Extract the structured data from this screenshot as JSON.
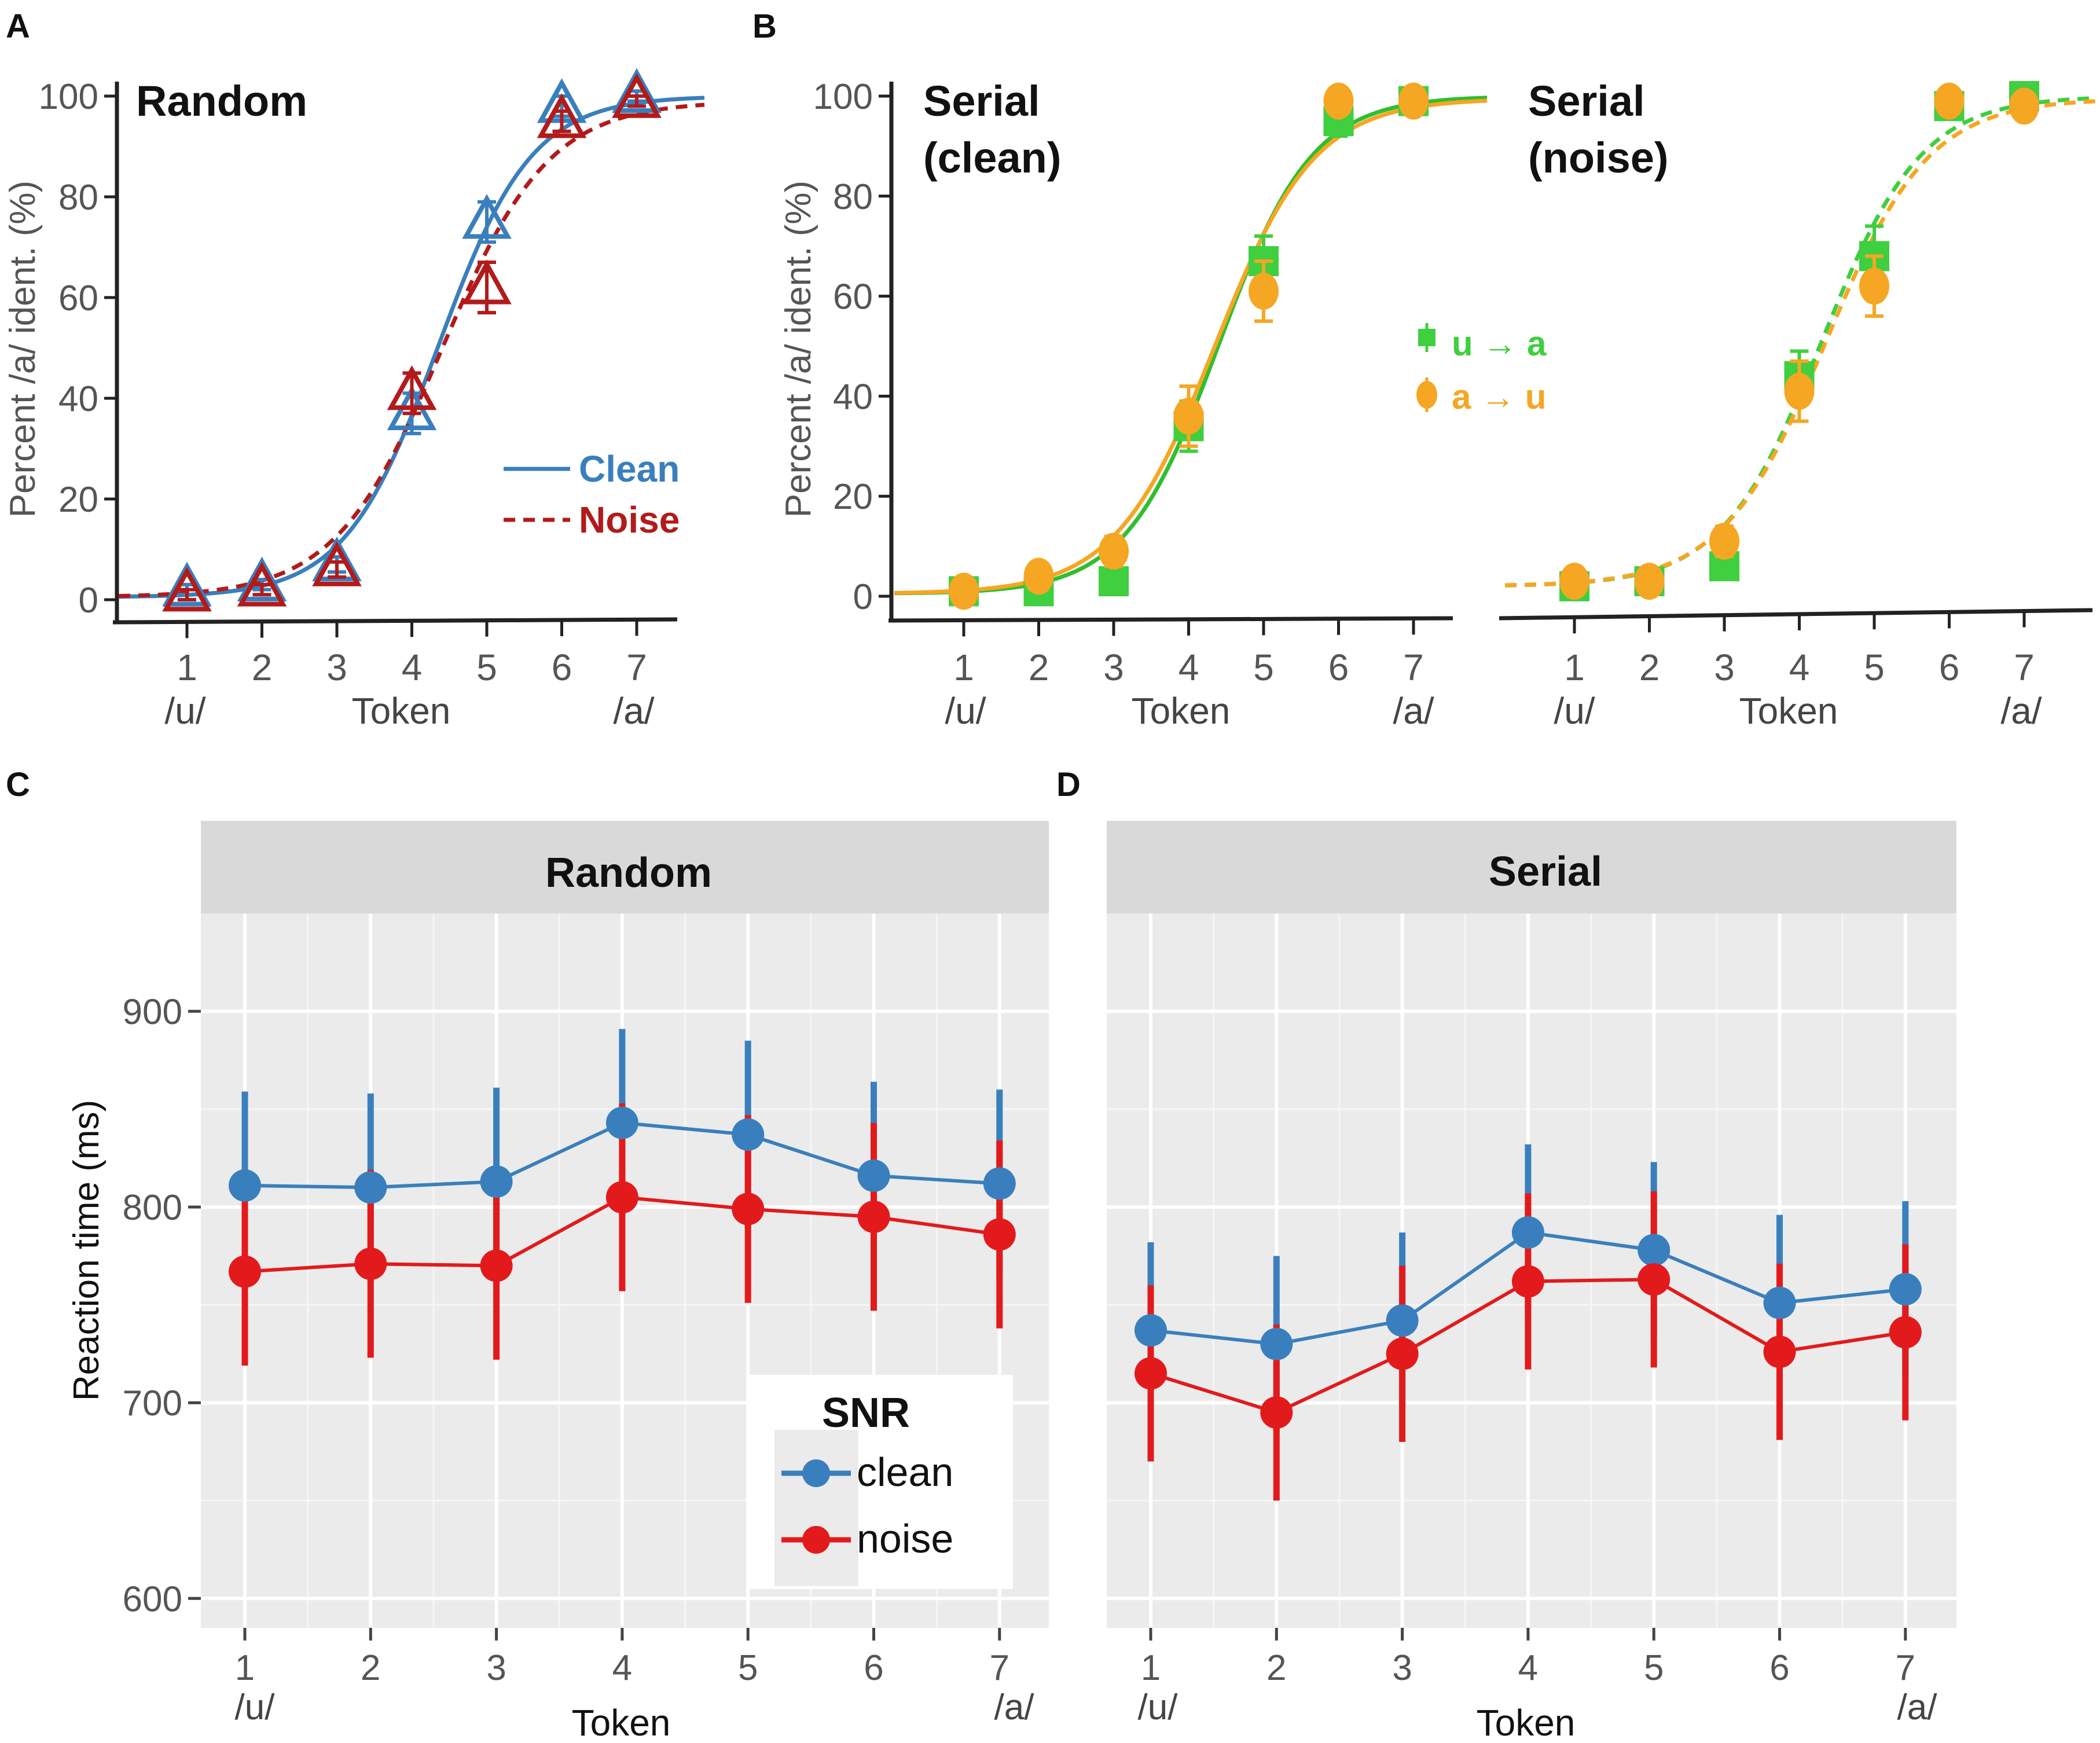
{
  "colors": {
    "clean_blue": "#3a7fbd",
    "noise_red_dark": "#b31a1a",
    "noise_red": "#e31a1c",
    "green": "#3fcf3f",
    "green_line": "#2fbf2f",
    "orange": "#f5a623",
    "panel_bg": "#ebebeb",
    "strip_bg": "#d9d9d9",
    "axis": "#222222",
    "tick_text": "#555555"
  },
  "chart_data": [
    {
      "id": "A",
      "panel_label": "A",
      "type": "line",
      "title": "Random",
      "xlabel": "Token",
      "ylabel": "Percent /a/ ident. (%)",
      "ylim": [
        0,
        100
      ],
      "y_ticks": [
        "0",
        "20",
        "40",
        "60",
        "80",
        "100"
      ],
      "x": [
        1,
        2,
        3,
        4,
        5,
        6,
        7
      ],
      "x_end_labels": {
        "left": "/u/",
        "right": "/a/"
      },
      "series": [
        {
          "name": "Clean",
          "marker": "triangle",
          "line": "solid",
          "values": [
            2,
            3,
            7,
            37,
            75,
            98,
            100
          ],
          "errors": [
            1,
            1,
            1.5,
            4,
            4,
            2,
            1
          ]
        },
        {
          "name": "Noise",
          "marker": "triangle",
          "line": "dashed",
          "values": [
            1,
            2,
            6,
            41,
            62,
            95,
            99
          ],
          "errors": [
            1,
            1,
            1.5,
            4,
            5,
            2,
            1
          ]
        }
      ],
      "legend": [
        "Clean",
        "Noise"
      ]
    },
    {
      "id": "B1",
      "panel_label": "B",
      "type": "line",
      "title": "Serial\n(clean)",
      "title_lines": [
        "Serial",
        "(clean)"
      ],
      "xlabel": "Token",
      "ylabel": "Percent /a/ ident. (%)",
      "ylim": [
        0,
        100
      ],
      "y_ticks": [
        "0",
        "20",
        "40",
        "60",
        "80",
        "100"
      ],
      "x": [
        1,
        2,
        3,
        4,
        5,
        6,
        7
      ],
      "x_end_labels": {
        "left": "/u/",
        "right": "/a/"
      },
      "series": [
        {
          "name": "u → a",
          "marker": "square",
          "line": "solid",
          "values": [
            1,
            1,
            3,
            34,
            67,
            95,
            99
          ],
          "errors": [
            1.5,
            1.5,
            2,
            5,
            5,
            3,
            1.5
          ]
        },
        {
          "name": "a → u",
          "marker": "circle",
          "line": "solid",
          "values": [
            1,
            4,
            9,
            36,
            61,
            99,
            99
          ],
          "errors": [
            1.5,
            2,
            3,
            6,
            6,
            1.5,
            1.5
          ]
        }
      ],
      "legend": [
        "u → a",
        "a → u"
      ]
    },
    {
      "id": "B2",
      "panel_label": "",
      "type": "line",
      "title": "Serial\n(noise)",
      "title_lines": [
        "Serial",
        "(noise)"
      ],
      "xlabel": "Token",
      "ylim": [
        0,
        100
      ],
      "x": [
        1,
        2,
        3,
        4,
        5,
        6,
        7
      ],
      "x_end_labels": {
        "left": "/u/",
        "right": "/a/"
      },
      "series": [
        {
          "name": "u → a",
          "marker": "square",
          "line": "dashed",
          "values": [
            2,
            3,
            6,
            44,
            68,
            98,
            100
          ],
          "errors": [
            1.5,
            1.5,
            2,
            5,
            6,
            2,
            1
          ]
        },
        {
          "name": "a → u",
          "marker": "circle",
          "line": "dashed",
          "values": [
            3,
            3,
            11,
            41,
            62,
            99,
            98
          ],
          "errors": [
            1.5,
            1.5,
            3,
            6,
            6,
            1.5,
            2
          ]
        }
      ]
    },
    {
      "id": "C",
      "panel_label": "C",
      "type": "line",
      "facet_title": "Random",
      "xlabel": "Token",
      "ylabel": "Reaction time (ms)",
      "ylim": [
        585,
        950
      ],
      "y_ticks": [
        "600",
        "700",
        "800",
        "900"
      ],
      "x": [
        1,
        2,
        3,
        4,
        5,
        6,
        7
      ],
      "x_end_labels": {
        "left": "/u/",
        "right": "/a/"
      },
      "series": [
        {
          "name": "clean",
          "values": [
            811,
            810,
            813,
            843,
            837,
            816,
            812
          ],
          "errors": [
            48,
            48,
            48,
            48,
            48,
            48,
            48
          ]
        },
        {
          "name": "noise",
          "values": [
            767,
            771,
            770,
            805,
            799,
            795,
            786
          ],
          "errors": [
            48,
            48,
            48,
            48,
            48,
            48,
            48
          ]
        }
      ],
      "legend_title": "SNR",
      "legend": [
        "clean",
        "noise"
      ]
    },
    {
      "id": "D",
      "panel_label": "D",
      "type": "line",
      "facet_title": "Serial",
      "xlabel": "Token",
      "ylim": [
        585,
        950
      ],
      "x": [
        1,
        2,
        3,
        4,
        5,
        6,
        7
      ],
      "x_end_labels": {
        "left": "/u/",
        "right": "/a/"
      },
      "series": [
        {
          "name": "clean",
          "values": [
            737,
            730,
            742,
            787,
            778,
            751,
            758
          ],
          "errors": [
            45,
            45,
            45,
            45,
            45,
            45,
            45
          ]
        },
        {
          "name": "noise",
          "values": [
            715,
            695,
            725,
            762,
            763,
            726,
            736
          ],
          "errors": [
            45,
            45,
            45,
            45,
            45,
            45,
            45
          ]
        }
      ]
    }
  ]
}
